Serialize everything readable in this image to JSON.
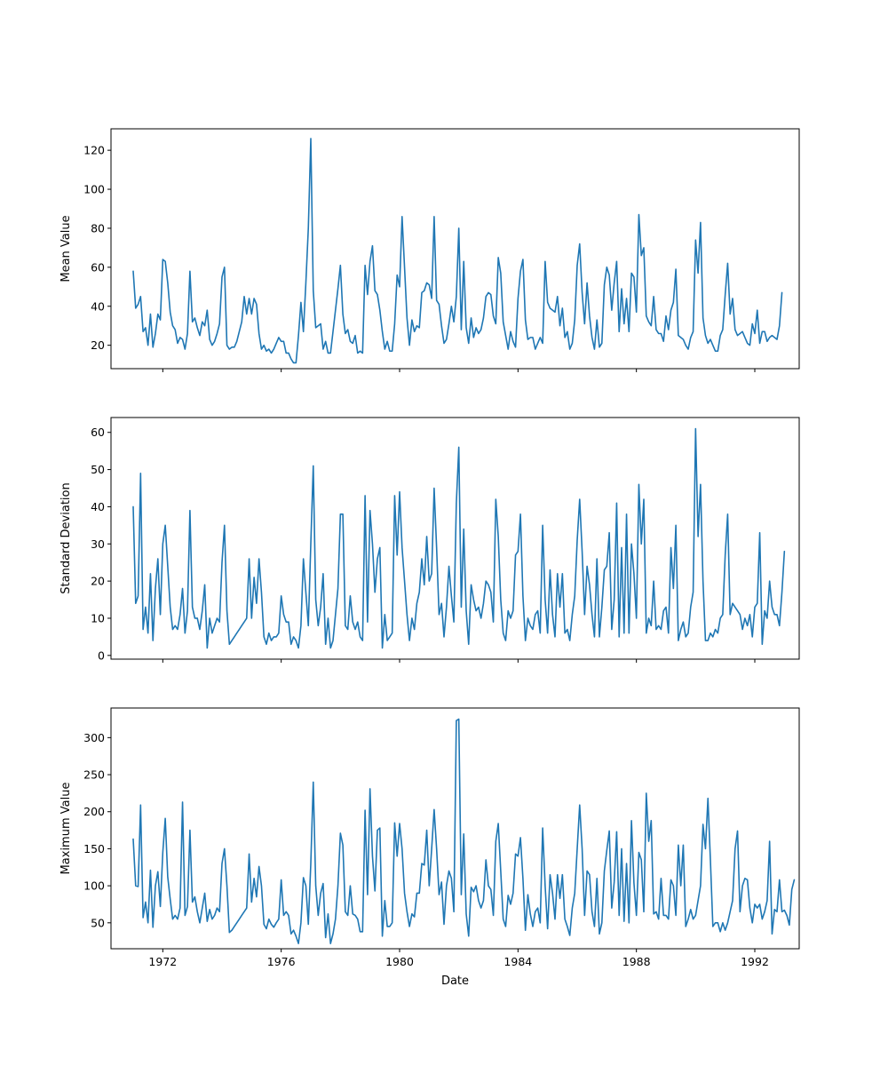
{
  "colors": {
    "line": "#1f77b4"
  },
  "chart_data": [
    {
      "type": "line",
      "ylabel": "Mean Value",
      "xlabel": "",
      "show_x_tick_labels": false,
      "ylim": [
        8,
        131
      ],
      "xlim": [
        1970.25,
        1993.5
      ],
      "yticks": [
        20,
        40,
        60,
        80,
        100,
        120
      ],
      "xticks": [
        1972,
        1976,
        1980,
        1984,
        1988,
        1992
      ],
      "grid": false,
      "series": [
        {
          "x_start": "1971-01",
          "frequency": "monthly",
          "values": [
            58,
            39,
            41,
            45,
            27,
            29,
            20,
            36,
            19,
            26,
            36,
            33,
            64,
            63,
            52,
            37,
            30,
            28,
            21,
            24,
            23,
            18,
            26,
            58,
            32,
            34,
            29,
            25,
            32,
            30,
            38,
            23,
            20,
            22,
            26,
            31,
            55,
            60,
            20,
            18,
            19,
            19,
            22,
            27,
            32,
            45,
            36,
            44,
            36,
            44,
            41,
            26,
            18,
            20,
            17,
            18,
            16,
            18,
            21,
            24,
            22,
            22,
            16,
            16,
            13,
            11,
            11,
            25,
            42,
            27,
            52,
            80,
            126,
            48,
            29,
            30,
            31,
            18,
            22,
            16,
            16,
            27,
            38,
            49,
            61,
            36,
            26,
            28,
            22,
            21,
            25,
            16,
            17,
            16,
            61,
            46,
            63,
            71,
            48,
            46,
            38,
            27,
            18,
            22,
            17,
            17,
            31,
            56,
            50,
            86,
            60,
            34,
            20,
            33,
            27,
            30,
            29,
            47,
            48,
            52,
            51,
            44,
            86,
            43,
            41,
            30,
            21,
            23,
            31,
            40,
            32,
            45,
            80,
            28,
            63,
            29,
            21,
            34,
            24,
            29,
            26,
            28,
            34,
            45,
            47,
            46,
            35,
            31,
            65,
            57,
            32,
            25,
            18,
            27,
            22,
            19,
            44,
            58,
            64,
            33,
            23,
            24,
            24,
            18,
            21,
            24,
            21,
            63,
            42,
            39,
            38,
            37,
            45,
            30,
            39,
            24,
            27,
            18,
            21,
            33,
            61,
            72,
            47,
            31,
            52,
            35,
            24,
            18,
            33,
            19,
            21,
            51,
            60,
            56,
            38,
            52,
            63,
            27,
            49,
            31,
            44,
            27,
            57,
            55,
            37,
            87,
            66,
            70,
            35,
            32,
            30,
            45,
            28,
            26,
            26,
            22,
            35,
            28,
            38,
            42,
            59,
            25,
            24,
            23,
            20,
            18,
            24,
            27,
            74,
            57,
            83,
            34,
            25,
            21,
            23,
            20,
            17,
            17,
            25,
            28,
            46,
            62,
            36,
            44,
            28,
            25,
            26,
            27,
            24,
            21,
            20,
            31,
            26,
            38,
            21,
            27,
            27,
            22,
            24,
            25,
            24,
            23,
            30,
            47
          ]
        }
      ]
    },
    {
      "type": "line",
      "ylabel": "Standard Deviation",
      "xlabel": "",
      "show_x_tick_labels": false,
      "ylim": [
        -1,
        64
      ],
      "xlim": [
        1970.25,
        1993.5
      ],
      "yticks": [
        0,
        10,
        20,
        30,
        40,
        50,
        60
      ],
      "xticks": [
        1972,
        1976,
        1980,
        1984,
        1988,
        1992
      ],
      "grid": false,
      "series": [
        {
          "x_start": "1971-01",
          "frequency": "monthly",
          "values": [
            40,
            14,
            16,
            49,
            7,
            13,
            6,
            22,
            4,
            18,
            26,
            11,
            30,
            35,
            24,
            13,
            7,
            8,
            7,
            11,
            18,
            6,
            12,
            39,
            13,
            10,
            10,
            7,
            12,
            19,
            2,
            10,
            6,
            8,
            10,
            9,
            25,
            35,
            12,
            3,
            4,
            5,
            6,
            7,
            8,
            9,
            10,
            26,
            10,
            21,
            14,
            26,
            17,
            5,
            3,
            6,
            4,
            5,
            5,
            6,
            16,
            11,
            9,
            9,
            3,
            5,
            4,
            2,
            8,
            26,
            17,
            8,
            30,
            51,
            15,
            8,
            13,
            22,
            3,
            10,
            2,
            4,
            11,
            18,
            38,
            38,
            8,
            7,
            16,
            9,
            7,
            9,
            5,
            4,
            43,
            9,
            39,
            30,
            17,
            26,
            29,
            2,
            11,
            4,
            5,
            6,
            43,
            27,
            44,
            29,
            20,
            11,
            4,
            10,
            7,
            14,
            17,
            26,
            19,
            32,
            20,
            22,
            45,
            29,
            11,
            14,
            5,
            13,
            24,
            16,
            9,
            41,
            56,
            13,
            34,
            12,
            3,
            19,
            15,
            12,
            13,
            10,
            14,
            20,
            19,
            17,
            9,
            42,
            32,
            15,
            6,
            4,
            12,
            10,
            12,
            27,
            28,
            38,
            16,
            4,
            10,
            8,
            7,
            11,
            12,
            6,
            35,
            15,
            6,
            23,
            11,
            5,
            22,
            13,
            22,
            6,
            7,
            4,
            11,
            16,
            31,
            42,
            28,
            11,
            24,
            19,
            11,
            5,
            26,
            5,
            13,
            23,
            24,
            33,
            7,
            15,
            41,
            5,
            29,
            6,
            38,
            6,
            30,
            22,
            10,
            46,
            30,
            42,
            6,
            10,
            8,
            20,
            7,
            8,
            7,
            12,
            13,
            6,
            29,
            18,
            35,
            4,
            7,
            9,
            5,
            6,
            13,
            17,
            61,
            32,
            46,
            20,
            4,
            4,
            6,
            5,
            7,
            6,
            10,
            11,
            27,
            38,
            11,
            14,
            13,
            12,
            11,
            7,
            10,
            8,
            11,
            5,
            13,
            14,
            33,
            3,
            12,
            10,
            20,
            13,
            11,
            11,
            8,
            17,
            28
          ]
        }
      ]
    },
    {
      "type": "line",
      "ylabel": "Maximum Value",
      "xlabel": "Date",
      "show_x_tick_labels": true,
      "ylim": [
        15,
        340
      ],
      "xlim": [
        1970.25,
        1993.5
      ],
      "yticks": [
        50,
        100,
        150,
        200,
        250,
        300
      ],
      "xticks": [
        1972,
        1976,
        1980,
        1984,
        1988,
        1992
      ],
      "grid": false,
      "series": [
        {
          "x_start": "1971-01",
          "frequency": "monthly",
          "values": [
            163,
            100,
            99,
            209,
            57,
            78,
            50,
            121,
            44,
            100,
            119,
            72,
            145,
            191,
            112,
            82,
            55,
            60,
            55,
            70,
            213,
            60,
            72,
            175,
            78,
            85,
            65,
            50,
            70,
            90,
            52,
            68,
            55,
            60,
            70,
            65,
            130,
            150,
            100,
            37,
            40,
            45,
            50,
            55,
            60,
            65,
            70,
            143,
            78,
            110,
            85,
            126,
            100,
            48,
            42,
            55,
            48,
            44,
            50,
            55,
            108,
            60,
            65,
            60,
            35,
            40,
            32,
            22,
            50,
            111,
            100,
            48,
            130,
            240,
            100,
            60,
            90,
            103,
            30,
            62,
            22,
            35,
            55,
            100,
            171,
            155,
            65,
            60,
            100,
            62,
            60,
            55,
            38,
            38,
            202,
            88,
            231,
            140,
            93,
            175,
            178,
            32,
            80,
            45,
            45,
            50,
            185,
            140,
            184,
            150,
            90,
            65,
            45,
            62,
            58,
            90,
            90,
            130,
            128,
            175,
            100,
            150,
            203,
            150,
            88,
            105,
            48,
            100,
            120,
            110,
            65,
            323,
            325,
            88,
            170,
            62,
            32,
            98,
            92,
            100,
            80,
            70,
            80,
            135,
            100,
            95,
            60,
            160,
            184,
            120,
            55,
            45,
            87,
            75,
            90,
            143,
            140,
            165,
            110,
            40,
            88,
            62,
            45,
            65,
            70,
            50,
            178,
            100,
            42,
            115,
            90,
            55,
            115,
            83,
            115,
            55,
            45,
            33,
            70,
            90,
            150,
            209,
            150,
            60,
            120,
            115,
            65,
            45,
            110,
            35,
            50,
            120,
            148,
            174,
            70,
            105,
            173,
            60,
            150,
            52,
            130,
            50,
            188,
            104,
            60,
            145,
            135,
            65,
            225,
            160,
            188,
            62,
            65,
            55,
            110,
            60,
            60,
            55,
            108,
            100,
            60,
            155,
            100,
            155,
            45,
            55,
            68,
            55,
            60,
            80,
            100,
            183,
            150,
            218,
            135,
            45,
            50,
            50,
            38,
            50,
            40,
            50,
            65,
            80,
            150,
            174,
            65,
            100,
            110,
            108,
            70,
            50,
            75,
            70,
            75,
            55,
            65,
            80,
            160,
            35,
            68,
            65,
            108,
            65,
            67,
            60,
            47,
            95,
            108
          ]
        }
      ]
    }
  ]
}
